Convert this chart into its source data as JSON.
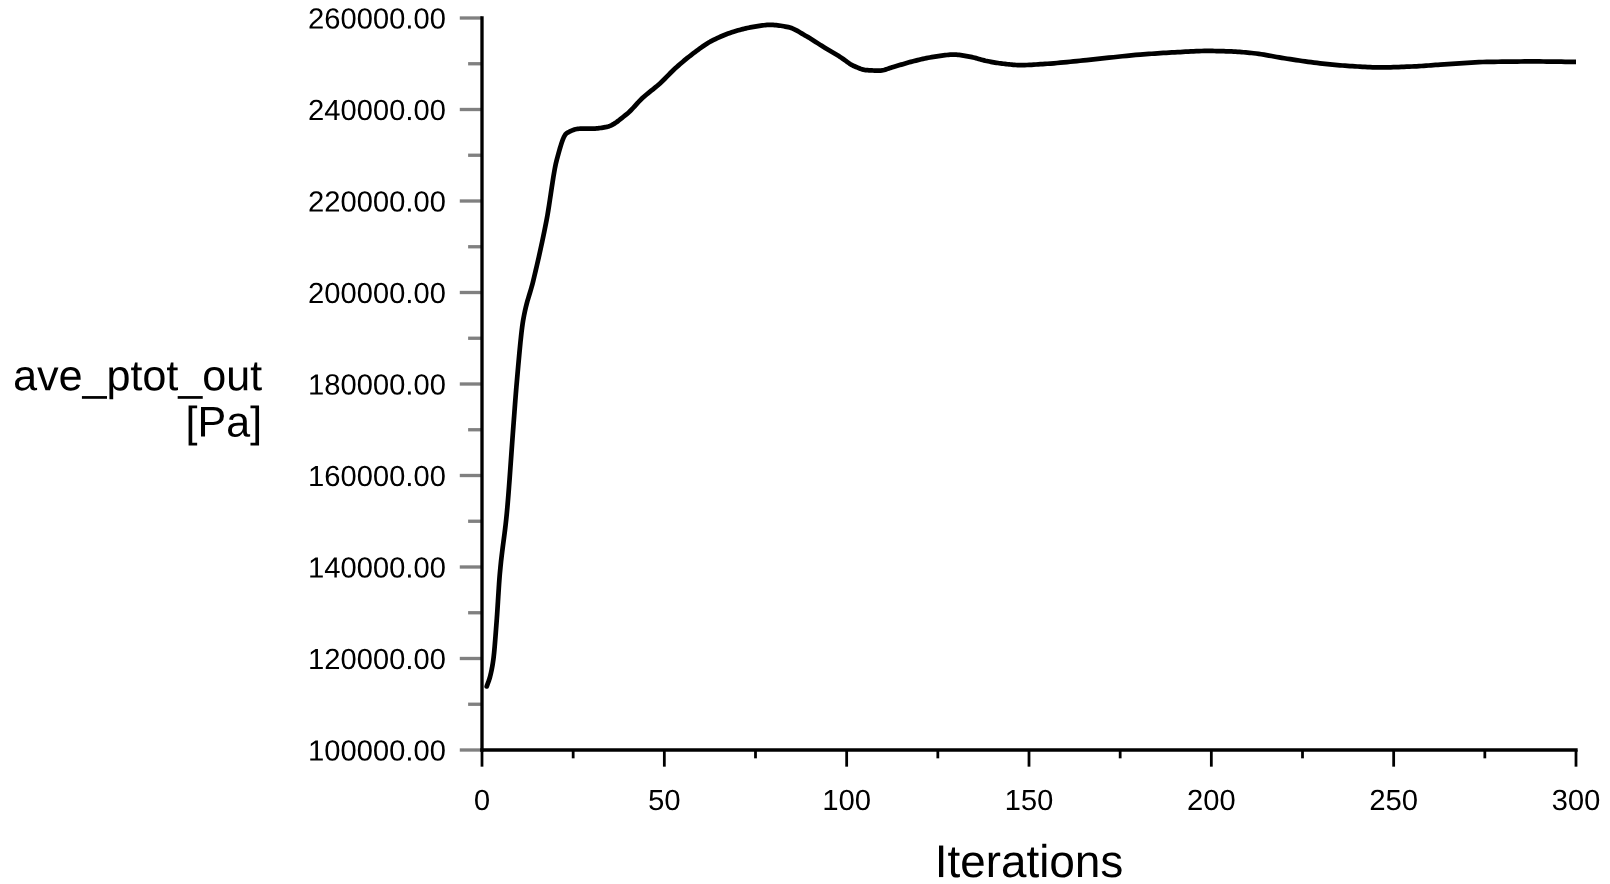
{
  "chart_data": {
    "type": "line",
    "xlabel": "Iterations",
    "ylabel": "ave_ptot_out\n[Pa]",
    "x": [
      1.3,
      2.2,
      3.1,
      4.0,
      4.9,
      6.8,
      8.6,
      9.5,
      11.3,
      14.1,
      17.7,
      20.5,
      23.2,
      26.9,
      30,
      34.2,
      39.7,
      44,
      48.8,
      53,
      58,
      63,
      69,
      74,
      79,
      84,
      89,
      94,
      98.2,
      102,
      105.5,
      109,
      112.8,
      118,
      123.8,
      129.3,
      134,
      138.4,
      143,
      147.6,
      155,
      165.8,
      180.5,
      190,
      198.8,
      205,
      211.6,
      220,
      229.8,
      238,
      246.3,
      255,
      262.8,
      275.5,
      288,
      300
    ],
    "series": [
      {
        "color": "#000000",
        "values": [
          113900,
          116000,
          119700,
          128000,
          138600,
          151700,
          170700,
          180000,
          194000,
          202700,
          215800,
          229000,
          234800,
          235800,
          235800,
          236200,
          239000,
          242500,
          245700,
          249000,
          252300,
          255000,
          257000,
          258000,
          258500,
          258000,
          256000,
          253500,
          251500,
          249500,
          248600,
          248500,
          249300,
          250500,
          251500,
          252000,
          251500,
          250600,
          250000,
          249700,
          250000,
          250800,
          252000,
          252500,
          252800,
          252700,
          252300,
          251200,
          250100,
          249500,
          249200,
          249400,
          249800,
          250400,
          250500,
          250400
        ]
      }
    ],
    "xlim": [
      0,
      300
    ],
    "xticks": [
      0,
      50,
      100,
      150,
      200,
      250,
      300
    ],
    "ylim": [
      100000,
      260000
    ],
    "yticks": [
      {
        "value": 100000,
        "label": "100000.00"
      },
      {
        "value": 120000,
        "label": "120000.00"
      },
      {
        "value": 140000,
        "label": "140000.00"
      },
      {
        "value": 160000,
        "label": "160000.00"
      },
      {
        "value": 180000,
        "label": "180000.00"
      },
      {
        "value": 200000,
        "label": "200000.00"
      },
      {
        "value": 220000,
        "label": "220000.00"
      },
      {
        "value": 240000,
        "label": "240000.00"
      },
      {
        "value": 260000,
        "label": "260000.00"
      }
    ],
    "marker": "none",
    "line_style": "solid"
  }
}
